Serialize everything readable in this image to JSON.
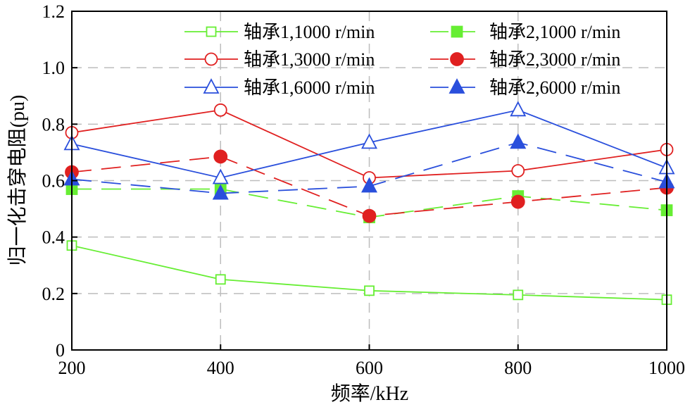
{
  "chart_data": {
    "type": "line",
    "title": "",
    "xlabel": "频率/kHz",
    "ylabel": "归一化击穿电阻(pu)",
    "x": [
      200,
      400,
      600,
      800,
      1000
    ],
    "xlim": [
      200,
      1000
    ],
    "ylim": [
      0,
      1.2
    ],
    "xticks": [
      "200",
      "400",
      "600",
      "800",
      "1000"
    ],
    "yticks": [
      "0",
      "0.2",
      "0.4",
      "0.6",
      "0.8",
      "1.0",
      "1.2"
    ],
    "grid": true,
    "legend_position": "top-right",
    "series": [
      {
        "name": "轴承1,1000 r/min",
        "values": [
          0.37,
          0.25,
          0.21,
          0.195,
          0.178
        ],
        "color": "#66ee33",
        "marker": "square-open",
        "line": "solid"
      },
      {
        "name": "轴承2,1000 r/min",
        "values": [
          0.57,
          0.57,
          0.47,
          0.545,
          0.495
        ],
        "color": "#66ee33",
        "marker": "square-filled",
        "line": "dashed"
      },
      {
        "name": "轴承1,3000 r/min",
        "values": [
          0.77,
          0.85,
          0.61,
          0.635,
          0.71
        ],
        "color": "#e02020",
        "marker": "circle-open",
        "line": "solid"
      },
      {
        "name": "轴承2,3000 r/min",
        "values": [
          0.63,
          0.685,
          0.475,
          0.525,
          0.575
        ],
        "color": "#e02020",
        "marker": "circle-filled",
        "line": "dashed"
      },
      {
        "name": "轴承1,6000 r/min",
        "values": [
          0.73,
          0.61,
          0.735,
          0.85,
          0.645
        ],
        "color": "#2a4fdc",
        "marker": "triangle-open",
        "line": "solid"
      },
      {
        "name": "轴承2,6000 r/min",
        "values": [
          0.605,
          0.555,
          0.58,
          0.735,
          0.595
        ],
        "color": "#2a4fdc",
        "marker": "triangle-filled",
        "line": "dashed"
      }
    ]
  }
}
